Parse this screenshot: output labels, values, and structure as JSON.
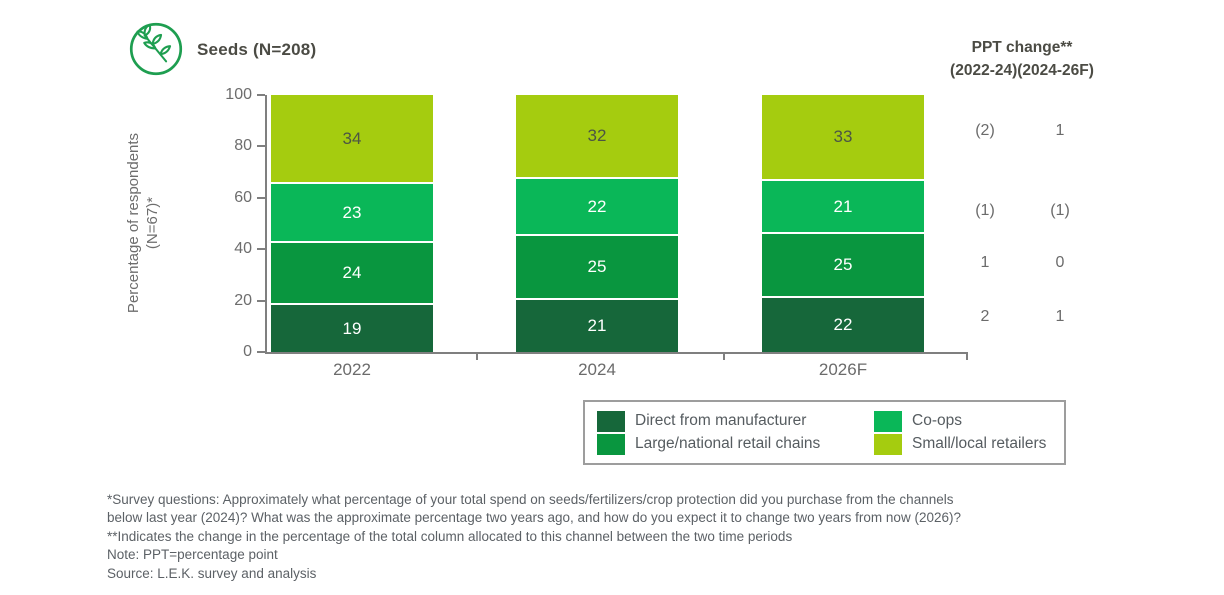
{
  "header": {
    "title": "Seeds (N=208)",
    "icon": "leaf-branch-icon",
    "icon_color": "#1e9e50"
  },
  "chart_data": {
    "type": "bar",
    "stacked": true,
    "title": "Seeds (N=208)",
    "categories": [
      "2022",
      "2024",
      "2026F"
    ],
    "series": [
      {
        "name": "Direct from manufacturer",
        "color": "#16673a",
        "label_color": "#ffffff",
        "values": [
          19,
          21,
          22
        ]
      },
      {
        "name": "Large/national retail chains",
        "color": "#09963f",
        "label_color": "#ffffff",
        "values": [
          24,
          25,
          25
        ]
      },
      {
        "name": "Co-ops",
        "color": "#0ab758",
        "label_color": "#ffffff",
        "values": [
          23,
          22,
          21
        ]
      },
      {
        "name": "Small/local retailers",
        "color": "#a5cc0f",
        "label_color": "#4c5544",
        "values": [
          34,
          32,
          33
        ]
      }
    ],
    "ylabel": "Percentage of respondents (N=67)*",
    "ylabel_lines": [
      "Percentage of respondents",
      "(N=67)*"
    ],
    "yticks": [
      0,
      20,
      40,
      60,
      80,
      100
    ],
    "ylim": [
      0,
      100
    ],
    "grid": false,
    "legend_position": "bottom-right"
  },
  "ppt_change": {
    "header_line1": "PPT change**",
    "header_line2": "(2022-24)(2024-26F)",
    "rows": [
      {
        "series": "Small/local retailers",
        "col1": "(2)",
        "col2": "1"
      },
      {
        "series": "Co-ops",
        "col1": "(1)",
        "col2": "(1)"
      },
      {
        "series": "Large/national retail chains",
        "col1": "1",
        "col2": "0"
      },
      {
        "series": "Direct from manufacturer",
        "col1": "2",
        "col2": "1"
      }
    ]
  },
  "legend": {
    "items": [
      "Direct from manufacturer",
      "Co-ops",
      "Large/national retail chains",
      "Small/local retailers"
    ]
  },
  "footnotes": {
    "lines": [
      "*Survey questions: Approximately what percentage of your total spend on seeds/fertilizers/crop protection did you purchase from the channels",
      "below last year (2024)? What was the approximate percentage two years ago, and how do you expect it to change two years from now (2026)?",
      "**Indicates the change in the percentage of the total column allocated to this channel between the two time periods",
      "Note: PPT=percentage point",
      "Source: L.E.K. survey and analysis"
    ]
  }
}
